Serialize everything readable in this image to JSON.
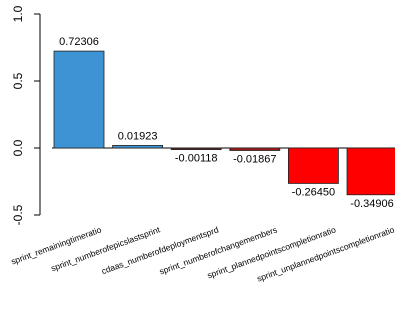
{
  "chart_data": {
    "type": "bar",
    "categories": [
      "sprint_remainingtimeratio",
      "sprint_numberofepicslastsprint",
      "cdaas_numberofdeploymentsprd",
      "sprint_numberofchangemembers",
      "sprint_plannedpointscompletionratio",
      "sprint_unplannedpointscompletionratio"
    ],
    "values": [
      0.72306,
      0.01923,
      -0.00118,
      -0.01867,
      -0.2645,
      -0.34906
    ],
    "value_labels": [
      "0.72306",
      "0.01923",
      "-0.00118",
      "-0.01867",
      "-0.26450",
      "-0.34906"
    ],
    "bar_colors": [
      "#3d93d3",
      "#3d93d3",
      "#5a2a2a",
      "#a01818",
      "#ff0000",
      "#ff0000"
    ],
    "title": "",
    "xlabel": "",
    "ylabel": "",
    "ylim": [
      -0.5,
      1.0
    ],
    "yticks": [
      -0.5,
      0.0,
      0.5,
      1.0
    ],
    "ytick_labels": [
      "-0.5",
      "0.0",
      "0.5",
      "1.0"
    ],
    "grid": false,
    "legend": "none"
  }
}
